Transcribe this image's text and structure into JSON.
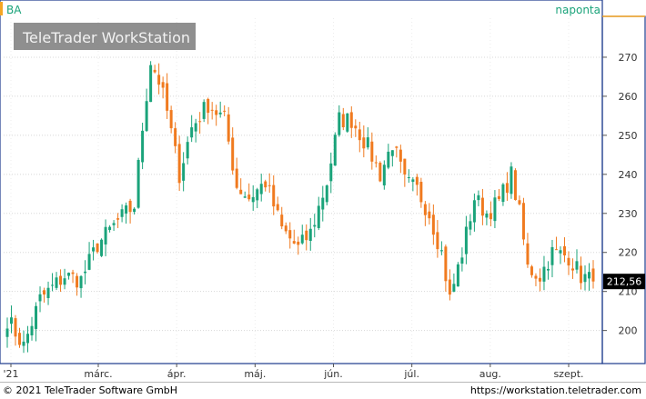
{
  "symbol": "BA",
  "interval": "naponta",
  "watermark": "TeleTrader WorkStation",
  "last_price_label": "212,56",
  "colors": {
    "up": "#1aa37a",
    "down": "#f07a1f",
    "price_tag_bg": "#000000",
    "frame": "#1a3a8c",
    "accent": "#f5a623"
  },
  "footer": {
    "copyright": "© 2021 TeleTrader Software GmbH",
    "url": "https://workstation.teletrader.com"
  },
  "chart_data": {
    "type": "candlestick",
    "ylim": [
      192,
      280
    ],
    "y_ticks": [
      200,
      210,
      220,
      230,
      240,
      250,
      260,
      270
    ],
    "x_labels": [
      "'21",
      "márc.",
      "ápr.",
      "máj.",
      "jún.",
      "júl.",
      "aug.",
      "szept."
    ],
    "last_value": 212.56,
    "anchors": [
      {
        "day": 0,
        "close": 203
      },
      {
        "day": 4,
        "close": 196
      },
      {
        "day": 8,
        "close": 208
      },
      {
        "day": 14,
        "close": 214
      },
      {
        "day": 18,
        "close": 213
      },
      {
        "day": 22,
        "close": 222
      },
      {
        "day": 27,
        "close": 228
      },
      {
        "day": 31,
        "close": 232
      },
      {
        "day": 33,
        "close": 252
      },
      {
        "day": 35,
        "close": 269
      },
      {
        "day": 37,
        "close": 264
      },
      {
        "day": 39,
        "close": 256
      },
      {
        "day": 42,
        "close": 240
      },
      {
        "day": 45,
        "close": 252
      },
      {
        "day": 49,
        "close": 258
      },
      {
        "day": 53,
        "close": 254
      },
      {
        "day": 56,
        "close": 237
      },
      {
        "day": 59,
        "close": 234
      },
      {
        "day": 63,
        "close": 238
      },
      {
        "day": 67,
        "close": 226
      },
      {
        "day": 71,
        "close": 221
      },
      {
        "day": 74,
        "close": 225
      },
      {
        "day": 78,
        "close": 238
      },
      {
        "day": 81,
        "close": 254
      },
      {
        "day": 84,
        "close": 254
      },
      {
        "day": 88,
        "close": 247
      },
      {
        "day": 91,
        "close": 240
      },
      {
        "day": 94,
        "close": 248
      },
      {
        "day": 97,
        "close": 238
      },
      {
        "day": 100,
        "close": 236
      },
      {
        "day": 103,
        "close": 230
      },
      {
        "day": 106,
        "close": 220
      },
      {
        "day": 108,
        "close": 208
      },
      {
        "day": 111,
        "close": 220
      },
      {
        "day": 114,
        "close": 234
      },
      {
        "day": 117,
        "close": 230
      },
      {
        "day": 120,
        "close": 233
      },
      {
        "day": 123,
        "close": 240
      },
      {
        "day": 125,
        "close": 230
      },
      {
        "day": 127,
        "close": 216
      },
      {
        "day": 130,
        "close": 214
      },
      {
        "day": 133,
        "close": 220
      },
      {
        "day": 137,
        "close": 219
      },
      {
        "day": 140,
        "close": 214
      },
      {
        "day": 143,
        "close": 212.56
      }
    ]
  }
}
